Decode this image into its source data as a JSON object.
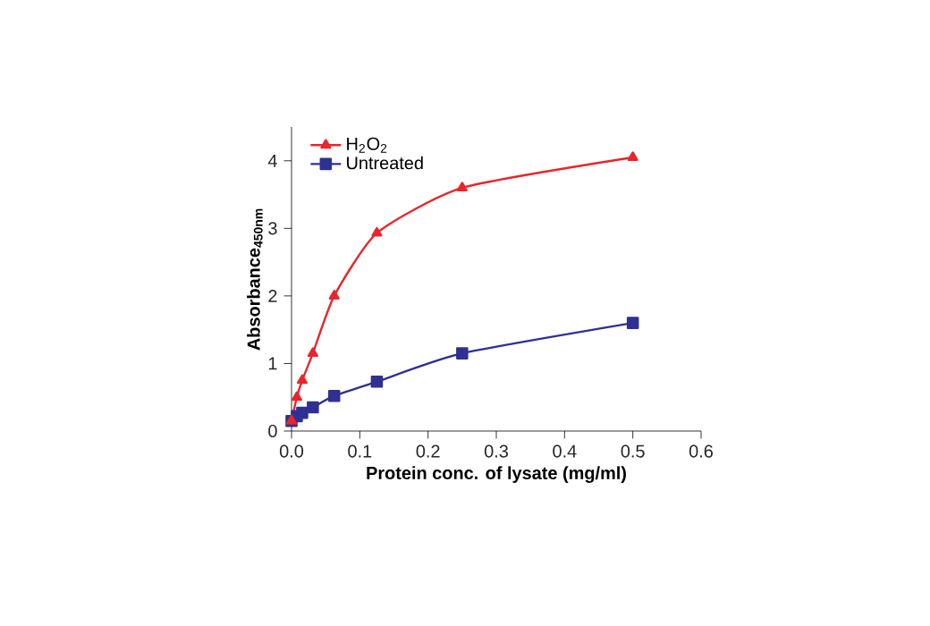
{
  "chart_data": {
    "type": "line",
    "xlabel": "Protein conc. of lysate (mg/ml)",
    "ylabel": "Absorbance$_{450nm}$",
    "x": [
      0,
      0.0078,
      0.0156,
      0.03125,
      0.0625,
      0.125,
      0.25,
      0.5
    ],
    "series": [
      {
        "name": "H$_{2}$O$_{2}$",
        "color": "#e8262b",
        "marker": "triangle",
        "values": [
          0.15,
          0.5,
          0.75,
          1.15,
          2.0,
          2.93,
          3.6,
          4.05
        ]
      },
      {
        "name": "Untreated",
        "color": "#2e3192",
        "marker": "square",
        "values": [
          0.15,
          0.22,
          0.27,
          0.35,
          0.52,
          0.73,
          1.15,
          1.6
        ]
      }
    ],
    "xlim": [
      0,
      0.6
    ],
    "xticks": [
      {
        "value": 0,
        "label": "0.0"
      },
      0.1,
      0.2,
      0.3,
      0.4,
      0.5,
      0.6
    ],
    "ylim": [
      0,
      4.5
    ],
    "yticks": [
      0,
      1,
      2,
      3,
      4
    ],
    "legend": "top left",
    "grid": false,
    "line_style": "solid"
  }
}
